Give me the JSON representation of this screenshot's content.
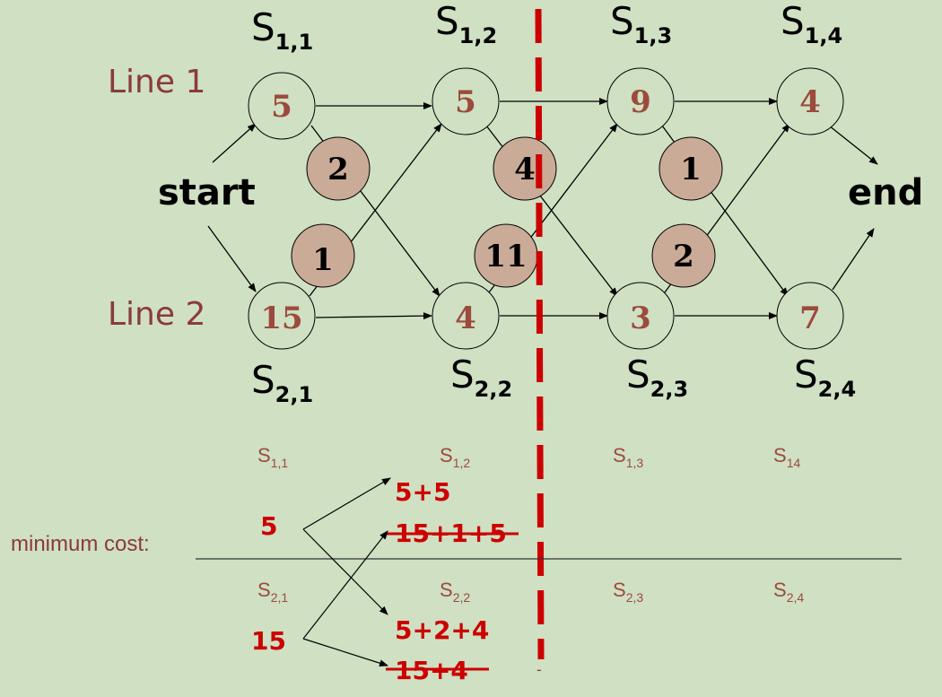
{
  "labels": {
    "line1": "Line 1",
    "line2": "Line 2",
    "start": "start",
    "end": "end",
    "minimum_cost": "minimum cost:"
  },
  "stations": {
    "s11": {
      "value": "5",
      "name": "S",
      "sub": "1,1"
    },
    "s12": {
      "value": "5",
      "name": "S",
      "sub": "1,2"
    },
    "s13": {
      "value": "9",
      "name": "S",
      "sub": "1,3"
    },
    "s14": {
      "value": "4",
      "name": "S",
      "sub": "1,4"
    },
    "s21": {
      "value": "15",
      "name": "S",
      "sub": "2,1"
    },
    "s22": {
      "value": "4",
      "name": "S",
      "sub": "2,2"
    },
    "s23": {
      "value": "3",
      "name": "S",
      "sub": "2,3"
    },
    "s24": {
      "value": "7",
      "name": "S",
      "sub": "2,4"
    }
  },
  "transfers": {
    "t1": "2",
    "t2": "1",
    "t3": "4",
    "t4": "11",
    "t5": "1",
    "t6": "2"
  },
  "table": {
    "row1_headers": [
      {
        "name": "S",
        "sub": "1,1"
      },
      {
        "name": "S",
        "sub": "1,2"
      },
      {
        "name": "S",
        "sub": "1,3"
      },
      {
        "name": "S",
        "sub": "14"
      }
    ],
    "row2_headers": [
      {
        "name": "S",
        "sub": "2,1"
      },
      {
        "name": "S",
        "sub": "2,2"
      },
      {
        "name": "S",
        "sub": "2,3"
      },
      {
        "name": "S",
        "sub": "2,4"
      }
    ],
    "row1_cost": "5",
    "row2_cost": "15",
    "calc_1_2": "5+5",
    "calc_1_2_struck": "15+1+5",
    "calc_2_2": "5+2+4",
    "calc_2_2_struck": "15+4",
    "dash_mark": "-"
  },
  "colors": {
    "background": "#cfe0c3",
    "transfer_fill": "#c9ab98",
    "divider": "#cc0000",
    "station_text": "#9c4a3c",
    "calc_text": "#cc0000"
  }
}
